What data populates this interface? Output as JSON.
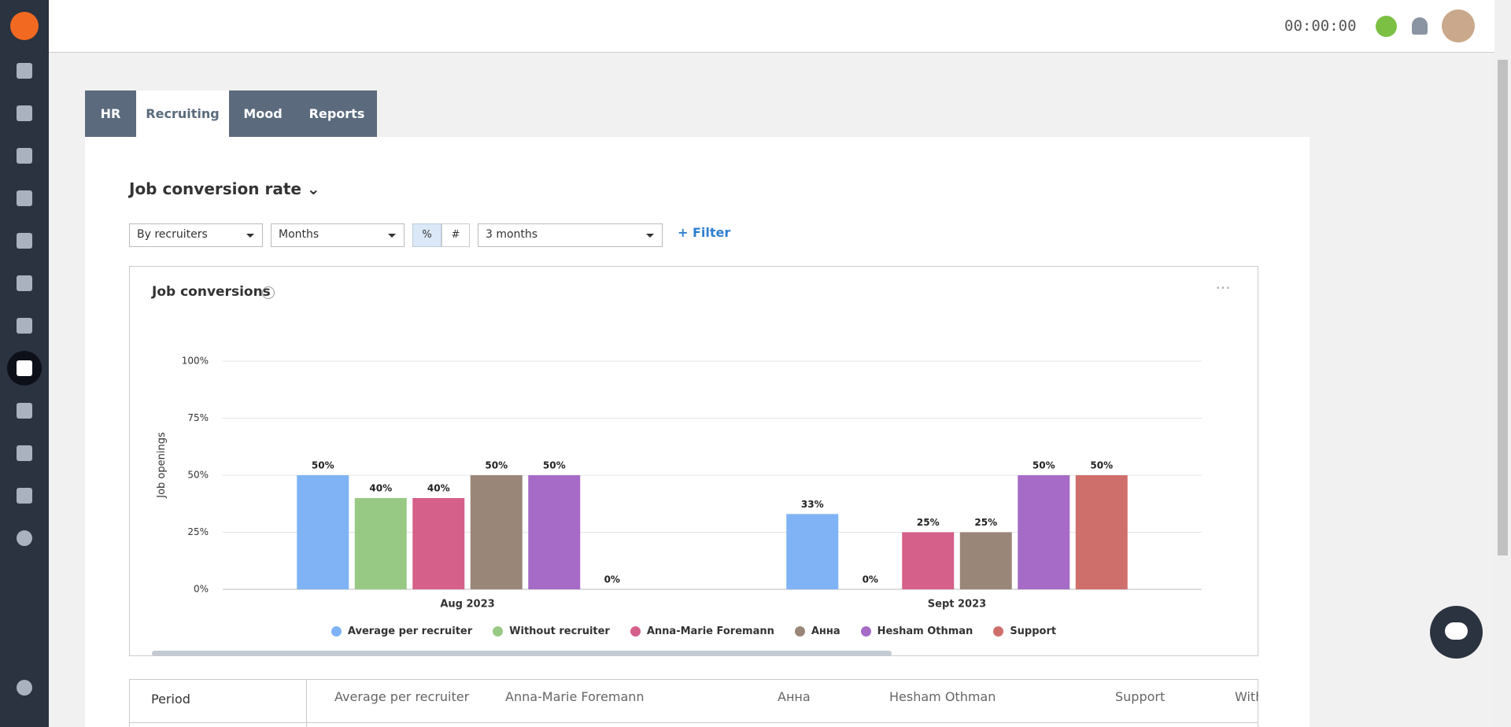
{
  "header": {
    "timer": "00:00:00"
  },
  "tabs": [
    "HR",
    "Recruiting",
    "Mood",
    "Reports"
  ],
  "report_title": "Job conversion rate",
  "filters": {
    "group_by": "By recruiters",
    "interval": "Months",
    "modes": [
      "%",
      "#"
    ],
    "range": "3 months",
    "add_filter": "Filter"
  },
  "chart_data": {
    "type": "bar",
    "title": "Job conversions",
    "y_label": "Job openings",
    "categories": [
      "Aug 2023",
      "Sept 2023"
    ],
    "series": [
      {
        "name": "Average per recruiter",
        "color": "#7fb3f5",
        "values": [
          50,
          33
        ],
        "value_labels": [
          "50%",
          "33%"
        ]
      },
      {
        "name": "Without recruiter",
        "color": "#98c984",
        "values": [
          40,
          0
        ],
        "value_labels": [
          "40%",
          "0%"
        ]
      },
      {
        "name": "Anna-Marie Foremann",
        "color": "#d5608a",
        "values": [
          40,
          25
        ],
        "value_labels": [
          "40%",
          "25%"
        ]
      },
      {
        "name": "Анна",
        "color": "#9a8679",
        "values": [
          50,
          25
        ],
        "value_labels": [
          "50%",
          "25%"
        ]
      },
      {
        "name": "Hesham Othman",
        "color": "#a66bc6",
        "values": [
          50,
          50
        ],
        "value_labels": [
          "50%",
          "50%"
        ]
      },
      {
        "name": "Support",
        "color": "#cf6f6b",
        "values": [
          0,
          50
        ],
        "value_labels": [
          "0%",
          "50%"
        ]
      }
    ],
    "ylim": [
      0,
      100
    ],
    "yticks": [
      {
        "value": 0,
        "label": "0%"
      },
      {
        "value": 25,
        "label": "25%"
      },
      {
        "value": 50,
        "label": "50%"
      },
      {
        "value": 75,
        "label": "75%"
      },
      {
        "value": 100,
        "label": "100%"
      }
    ],
    "grid": true
  },
  "table": {
    "columns": [
      "Period",
      "Average per recruiter",
      "Anna-Marie Foremann",
      "Анна",
      "Hesham Othman",
      "Support",
      "Without recruiter"
    ]
  }
}
